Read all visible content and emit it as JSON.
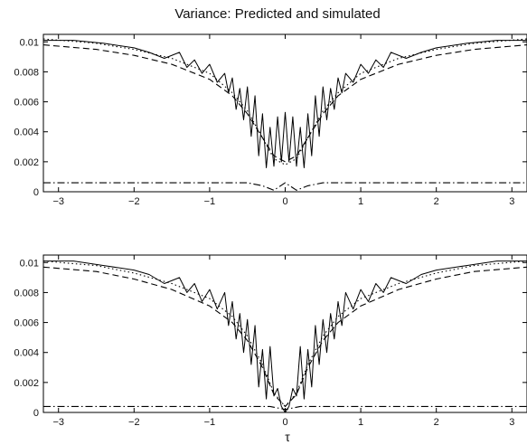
{
  "figure": {
    "title": "Variance: Predicted and simulated",
    "xlabel": "τ"
  },
  "chart_data": [
    {
      "type": "line",
      "title": "Variance: Predicted and simulated",
      "xlabel": "",
      "ylabel": "",
      "xlim": [
        -3.2,
        3.2
      ],
      "ylim": [
        0,
        0.0105
      ],
      "xticks": [
        -3,
        -2,
        -1,
        0,
        1,
        2,
        3
      ],
      "xtick_labels": [
        "−3",
        "−2",
        "−1",
        "0",
        "1",
        "2",
        "3"
      ],
      "yticks": [
        0,
        0.002,
        0.004,
        0.006,
        0.008,
        0.01
      ],
      "ytick_labels": [
        "0",
        "0.002",
        "0.004",
        "0.006",
        "0.008",
        "0.01"
      ],
      "grid": false,
      "series": [
        {
          "style": "solid",
          "x": [
            -3.2,
            -2.8,
            -2.4,
            -2.0,
            -1.8,
            -1.6,
            -1.4,
            -1.3,
            -1.2,
            -1.1,
            -1.0,
            -0.9,
            -0.8,
            -0.75,
            -0.7,
            -0.65,
            -0.6,
            -0.55,
            -0.5,
            -0.45,
            -0.4,
            -0.35,
            -0.3,
            -0.25,
            -0.2,
            -0.15,
            -0.1,
            -0.05,
            0.0,
            0.05,
            0.1,
            0.15,
            0.2,
            0.25,
            0.3,
            0.35,
            0.4,
            0.45,
            0.5,
            0.55,
            0.6,
            0.65,
            0.7,
            0.75,
            0.8,
            0.9,
            1.0,
            1.1,
            1.2,
            1.3,
            1.4,
            1.6,
            1.8,
            2.0,
            2.4,
            2.8,
            3.2
          ],
          "y": [
            0.0101,
            0.0101,
            0.0099,
            0.0096,
            0.0093,
            0.0089,
            0.0093,
            0.0083,
            0.0088,
            0.0079,
            0.0085,
            0.0073,
            0.0079,
            0.0066,
            0.0076,
            0.0055,
            0.0069,
            0.0048,
            0.007,
            0.0037,
            0.0064,
            0.0024,
            0.0052,
            0.0016,
            0.0043,
            0.0017,
            0.005,
            0.002,
            0.0053,
            0.002,
            0.005,
            0.0017,
            0.0043,
            0.0016,
            0.0052,
            0.0024,
            0.0064,
            0.0037,
            0.007,
            0.0048,
            0.0069,
            0.0055,
            0.0076,
            0.0066,
            0.0079,
            0.0073,
            0.0085,
            0.0079,
            0.0088,
            0.0083,
            0.0093,
            0.0089,
            0.0093,
            0.0096,
            0.0099,
            0.0101,
            0.0101
          ]
        },
        {
          "style": "dashed",
          "x": [
            -3.2,
            -2.5,
            -2.0,
            -1.5,
            -1.0,
            -0.7,
            -0.5,
            -0.3,
            -0.15,
            0.0,
            0.15,
            0.3,
            0.5,
            0.7,
            1.0,
            1.5,
            2.0,
            2.5,
            3.2
          ],
          "y": [
            0.0098,
            0.0095,
            0.0091,
            0.0085,
            0.0075,
            0.0064,
            0.0052,
            0.0036,
            0.0024,
            0.002,
            0.0024,
            0.0036,
            0.0052,
            0.0064,
            0.0075,
            0.0085,
            0.0091,
            0.0095,
            0.0098
          ]
        },
        {
          "style": "dotted",
          "x": [
            -3.2,
            -2.5,
            -2.0,
            -1.5,
            -1.0,
            -0.7,
            -0.5,
            -0.3,
            -0.15,
            0.0,
            0.15,
            0.3,
            0.5,
            0.7,
            1.0,
            1.5,
            2.0,
            2.5,
            3.2
          ],
          "y": [
            0.0102,
            0.0099,
            0.0095,
            0.0089,
            0.0079,
            0.0066,
            0.0054,
            0.0036,
            0.0022,
            0.0018,
            0.0022,
            0.0036,
            0.0054,
            0.0066,
            0.0079,
            0.0089,
            0.0095,
            0.0099,
            0.0102
          ]
        },
        {
          "style": "dashdot",
          "x": [
            -3.2,
            -0.5,
            -0.3,
            -0.15,
            0.0,
            0.15,
            0.3,
            0.5,
            3.2
          ],
          "y": [
            0.0006,
            0.0006,
            0.0004,
            0.0001,
            0.0006,
            0.0001,
            0.0004,
            0.0006,
            0.0006
          ]
        }
      ]
    },
    {
      "type": "line",
      "title": "",
      "xlabel": "τ",
      "ylabel": "",
      "xlim": [
        -3.2,
        3.2
      ],
      "ylim": [
        0,
        0.0105
      ],
      "xticks": [
        -3,
        -2,
        -1,
        0,
        1,
        2,
        3
      ],
      "xtick_labels": [
        "−3",
        "−2",
        "−1",
        "0",
        "1",
        "2",
        "3"
      ],
      "yticks": [
        0,
        0.002,
        0.004,
        0.006,
        0.008,
        0.01
      ],
      "ytick_labels": [
        "0",
        "0.002",
        "0.004",
        "0.006",
        "0.008",
        "0.01"
      ],
      "grid": false,
      "series": [
        {
          "style": "solid",
          "x": [
            -3.2,
            -2.8,
            -2.4,
            -2.0,
            -1.8,
            -1.6,
            -1.4,
            -1.3,
            -1.2,
            -1.1,
            -1.0,
            -0.9,
            -0.8,
            -0.75,
            -0.7,
            -0.65,
            -0.6,
            -0.55,
            -0.5,
            -0.45,
            -0.4,
            -0.35,
            -0.3,
            -0.25,
            -0.2,
            -0.15,
            -0.1,
            -0.05,
            0.0,
            0.05,
            0.1,
            0.15,
            0.2,
            0.25,
            0.3,
            0.35,
            0.4,
            0.45,
            0.5,
            0.55,
            0.6,
            0.65,
            0.7,
            0.75,
            0.8,
            0.9,
            1.0,
            1.1,
            1.2,
            1.3,
            1.4,
            1.6,
            1.8,
            2.0,
            2.4,
            2.8,
            3.2
          ],
          "y": [
            0.0101,
            0.0101,
            0.0098,
            0.0095,
            0.0092,
            0.0086,
            0.009,
            0.008,
            0.0086,
            0.0074,
            0.0082,
            0.0069,
            0.008,
            0.0058,
            0.0074,
            0.0049,
            0.0066,
            0.004,
            0.0062,
            0.0032,
            0.0058,
            0.0017,
            0.0042,
            0.0009,
            0.0044,
            0.0011,
            0.0016,
            0.0004,
            0.0,
            0.0004,
            0.0016,
            0.0011,
            0.0044,
            0.0009,
            0.0042,
            0.0017,
            0.0058,
            0.0032,
            0.0062,
            0.004,
            0.0066,
            0.0049,
            0.0074,
            0.0058,
            0.008,
            0.0069,
            0.0082,
            0.0074,
            0.0086,
            0.008,
            0.009,
            0.0086,
            0.0092,
            0.0095,
            0.0098,
            0.0101,
            0.0101
          ]
        },
        {
          "style": "dashed",
          "x": [
            -3.2,
            -2.5,
            -2.0,
            -1.5,
            -1.0,
            -0.7,
            -0.5,
            -0.3,
            -0.15,
            0.0,
            0.15,
            0.3,
            0.5,
            0.7,
            1.0,
            1.5,
            2.0,
            2.5,
            3.2
          ],
          "y": [
            0.0097,
            0.0094,
            0.0089,
            0.0082,
            0.0071,
            0.006,
            0.0048,
            0.003,
            0.0012,
            0.0004,
            0.0012,
            0.003,
            0.0048,
            0.006,
            0.0071,
            0.0082,
            0.0089,
            0.0094,
            0.0097
          ]
        },
        {
          "style": "dotted",
          "x": [
            -3.2,
            -2.5,
            -2.0,
            -1.5,
            -1.0,
            -0.7,
            -0.5,
            -0.3,
            -0.15,
            0.0,
            0.15,
            0.3,
            0.5,
            0.7,
            1.0,
            1.5,
            2.0,
            2.5,
            3.2
          ],
          "y": [
            0.0101,
            0.0098,
            0.0093,
            0.0086,
            0.0076,
            0.0064,
            0.0051,
            0.0032,
            0.0013,
            0.0004,
            0.0013,
            0.0032,
            0.0051,
            0.0064,
            0.0076,
            0.0086,
            0.0093,
            0.0098,
            0.0101
          ]
        },
        {
          "style": "dashdot",
          "x": [
            -3.2,
            -0.5,
            -0.2,
            0.0,
            0.2,
            0.5,
            3.2
          ],
          "y": [
            0.0004,
            0.0004,
            0.0004,
            0.0002,
            0.0004,
            0.0004,
            0.0004
          ]
        }
      ]
    }
  ]
}
